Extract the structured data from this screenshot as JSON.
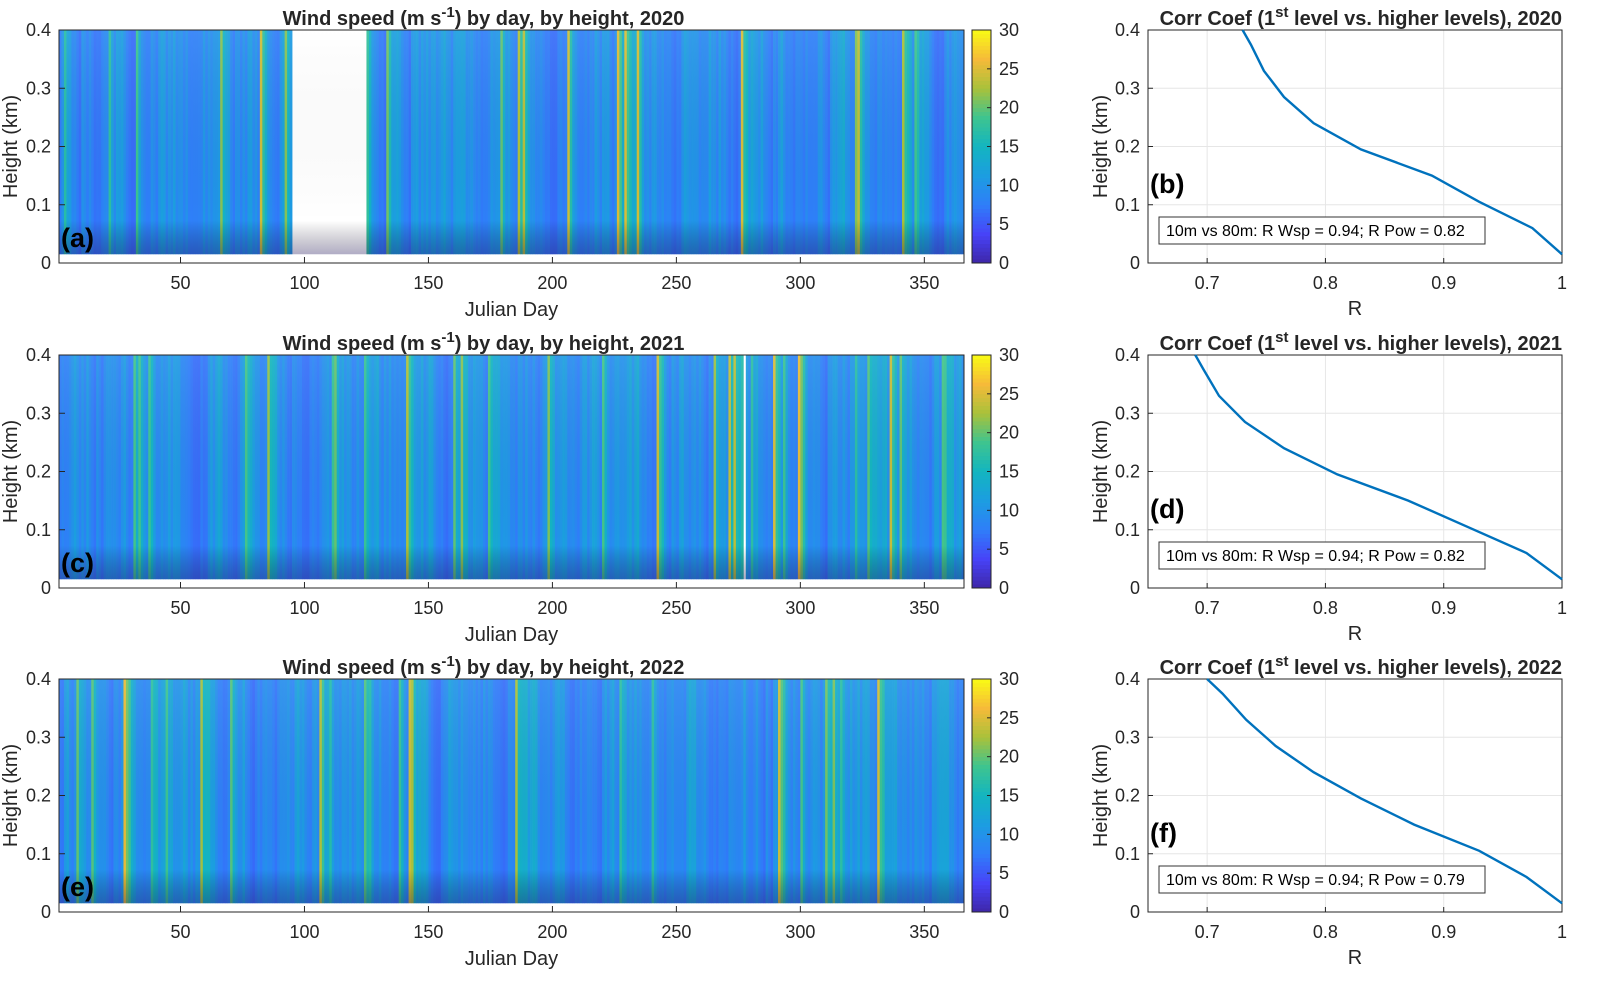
{
  "colors": {
    "line": "#0072BD",
    "grid": "#e6e6e6",
    "axis": "#262626",
    "colormap": [
      "#3e26a8",
      "#4743f8",
      "#2f7ef9",
      "#1c9de1",
      "#13b5c0",
      "#3ec48f",
      "#a9c13a",
      "#f6ba39",
      "#f9fb15"
    ]
  },
  "chart_data": [
    {
      "type": "heatmap",
      "panel_label": "(a)",
      "year": 2020,
      "title": {
        "pre": "Wind speed (m s",
        "sup": "-1",
        "post": ") by day, by height, 2020"
      },
      "xlabel": "Julian Day",
      "ylabel": "Height (km)",
      "xlim": [
        1,
        366
      ],
      "ylim": [
        0,
        0.4
      ],
      "data_height_range_km": [
        0.015,
        0.4
      ],
      "xticks": [
        "50",
        "100",
        "150",
        "200",
        "250",
        "300",
        "350"
      ],
      "yticks": [
        "0",
        "0.1",
        "0.2",
        "0.3",
        "0.4"
      ],
      "missing_days": [
        [
          95,
          125
        ]
      ],
      "colorbar": {
        "range": [
          0,
          30
        ],
        "ticks": [
          "0",
          "5",
          "10",
          "15",
          "20",
          "25",
          "30"
        ]
      },
      "seed": 2020
    },
    {
      "type": "line",
      "panel_label": "(b)",
      "year": 2020,
      "title": {
        "pre": "Corr Coef (1",
        "sup": "st",
        "post": " level vs. higher levels), 2020"
      },
      "xlabel": "R",
      "ylabel": "Height (km)",
      "xlim": [
        0.65,
        1.0
      ],
      "ylim": [
        0,
        0.4
      ],
      "xticks": [
        "0.7",
        "0.8",
        "0.9",
        "1"
      ],
      "yticks": [
        "0",
        "0.1",
        "0.2",
        "0.3",
        "0.4"
      ],
      "annotation": "10m vs 80m: R Wsp = 0.94; R Pow = 0.82",
      "x": [
        1.0,
        0.975,
        0.93,
        0.89,
        0.83,
        0.79,
        0.765,
        0.748,
        0.737,
        0.73
      ],
      "y": [
        0.015,
        0.06,
        0.105,
        0.15,
        0.195,
        0.24,
        0.285,
        0.33,
        0.375,
        0.4
      ]
    },
    {
      "type": "heatmap",
      "panel_label": "(c)",
      "year": 2021,
      "title": {
        "pre": "Wind speed (m s",
        "sup": "-1",
        "post": ") by day, by height, 2021"
      },
      "xlabel": "Julian Day",
      "ylabel": "Height (km)",
      "xlim": [
        1,
        366
      ],
      "ylim": [
        0,
        0.4
      ],
      "data_height_range_km": [
        0.015,
        0.4
      ],
      "xticks": [
        "50",
        "100",
        "150",
        "200",
        "250",
        "300",
        "350"
      ],
      "yticks": [
        "0",
        "0.1",
        "0.2",
        "0.3",
        "0.4"
      ],
      "missing_days": [
        [
          277,
          278
        ]
      ],
      "colorbar": {
        "range": [
          0,
          30
        ],
        "ticks": [
          "0",
          "5",
          "10",
          "15",
          "20",
          "25",
          "30"
        ]
      },
      "seed": 2021
    },
    {
      "type": "line",
      "panel_label": "(d)",
      "year": 2021,
      "title": {
        "pre": "Corr Coef (1",
        "sup": "st",
        "post": " level vs. higher levels), 2021"
      },
      "xlabel": "R",
      "ylabel": "Height (km)",
      "xlim": [
        0.65,
        1.0
      ],
      "ylim": [
        0,
        0.4
      ],
      "xticks": [
        "0.7",
        "0.8",
        "0.9",
        "1"
      ],
      "yticks": [
        "0",
        "0.1",
        "0.2",
        "0.3",
        "0.4"
      ],
      "annotation": "10m vs 80m: R Wsp = 0.94; R Pow = 0.82",
      "x": [
        1.0,
        0.97,
        0.92,
        0.87,
        0.81,
        0.765,
        0.732,
        0.71,
        0.697,
        0.69
      ],
      "y": [
        0.015,
        0.06,
        0.105,
        0.15,
        0.195,
        0.24,
        0.285,
        0.33,
        0.375,
        0.4
      ]
    },
    {
      "type": "heatmap",
      "panel_label": "(e)",
      "year": 2022,
      "title": {
        "pre": "Wind speed (m s",
        "sup": "-1",
        "post": ") by day, by height, 2022"
      },
      "xlabel": "Julian Day",
      "ylabel": "Height (km)",
      "xlim": [
        1,
        366
      ],
      "ylim": [
        0,
        0.4
      ],
      "data_height_range_km": [
        0.015,
        0.4
      ],
      "xticks": [
        "50",
        "100",
        "150",
        "200",
        "250",
        "300",
        "350"
      ],
      "yticks": [
        "0",
        "0.1",
        "0.2",
        "0.3",
        "0.4"
      ],
      "missing_days": [],
      "colorbar": {
        "range": [
          0,
          30
        ],
        "ticks": [
          "0",
          "5",
          "10",
          "15",
          "20",
          "25",
          "30"
        ]
      },
      "seed": 2022
    },
    {
      "type": "line",
      "panel_label": "(f)",
      "year": 2022,
      "title": {
        "pre": "Corr Coef (1",
        "sup": "st",
        "post": " level vs. higher levels), 2022"
      },
      "xlabel": "R",
      "ylabel": "Height (km)",
      "xlim": [
        0.65,
        1.0
      ],
      "ylim": [
        0,
        0.4
      ],
      "xticks": [
        "0.7",
        "0.8",
        "0.9",
        "1"
      ],
      "yticks": [
        "0",
        "0.1",
        "0.2",
        "0.3",
        "0.4"
      ],
      "annotation": "10m vs 80m: R Wsp = 0.94; R Pow = 0.79",
      "x": [
        1.0,
        0.97,
        0.93,
        0.875,
        0.83,
        0.79,
        0.758,
        0.733,
        0.713,
        0.7
      ],
      "y": [
        0.015,
        0.06,
        0.105,
        0.15,
        0.195,
        0.24,
        0.285,
        0.33,
        0.375,
        0.4
      ]
    }
  ]
}
